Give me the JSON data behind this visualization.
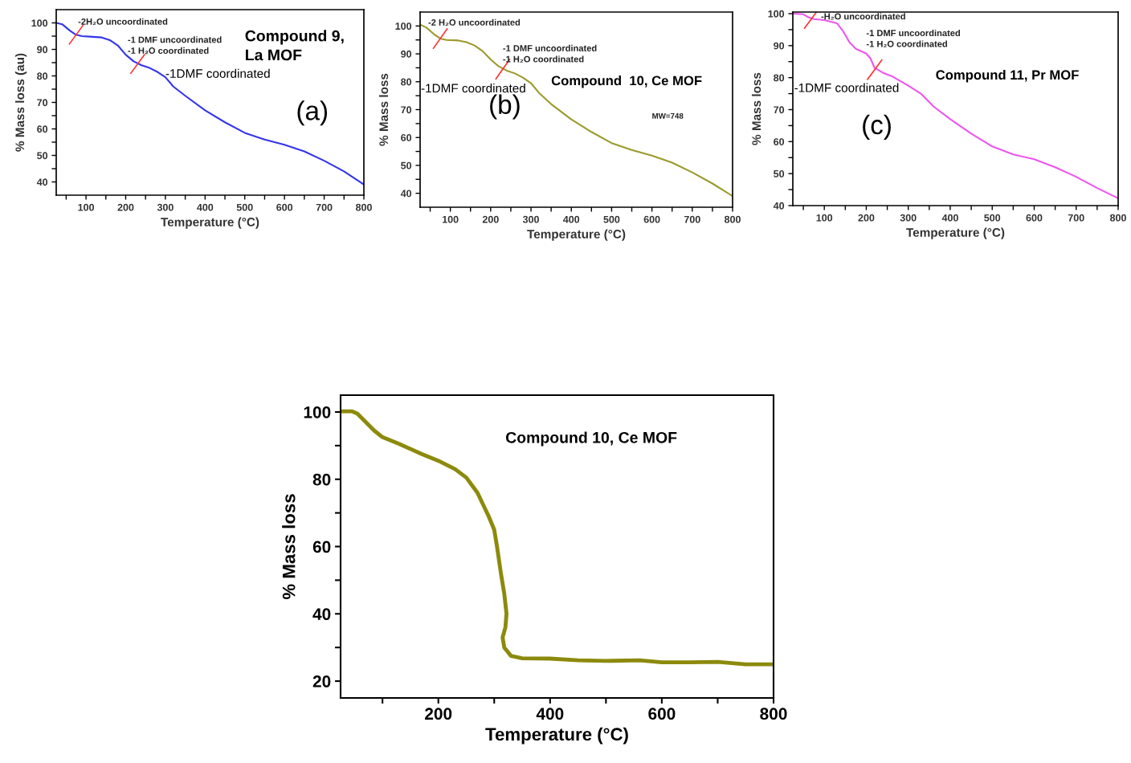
{
  "chart_data": [
    {
      "type": "line",
      "xlabel": "Temperature (°C)",
      "ylabel": "% Mass loss (au)",
      "xlim": [
        25,
        800
      ],
      "ylim": [
        35,
        105
      ],
      "xticks": [
        {
          "value": 50,
          "label": null
        },
        100,
        {
          "value": 150,
          "label": null
        },
        200,
        {
          "value": 250,
          "label": null
        },
        300,
        {
          "value": 350,
          "label": null
        },
        400,
        {
          "value": 450,
          "label": null
        },
        500,
        {
          "value": 550,
          "label": null
        },
        600,
        {
          "value": 650,
          "label": null
        },
        700,
        {
          "value": 750,
          "label": null
        },
        800
      ],
      "yticks": [
        40,
        {
          "value": 45,
          "label": null
        },
        50,
        {
          "value": 55,
          "label": null
        },
        60,
        {
          "value": 65,
          "label": null
        },
        70,
        {
          "value": 75,
          "label": null
        },
        80,
        {
          "value": 85,
          "label": null
        },
        90,
        {
          "value": 95,
          "label": null
        },
        100
      ],
      "grid": false,
      "series": [
        {
          "color": "#3434ee",
          "x": [
            25,
            40,
            60,
            75,
            90,
            110,
            140,
            160,
            180,
            200,
            220,
            240,
            260,
            280,
            300,
            320,
            350,
            400,
            450,
            500,
            550,
            600,
            650,
            700,
            750,
            800
          ],
          "values": [
            100,
            99.5,
            97,
            95.5,
            95,
            94.8,
            94.5,
            93.5,
            91.5,
            88,
            85.5,
            84,
            83,
            81.5,
            79.5,
            76,
            72.5,
            67,
            62.5,
            58.5,
            56,
            54,
            51.5,
            48,
            44,
            39
          ]
        }
      ],
      "annotations": [
        {
          "text": "-2H₂O uncoordinated",
          "x": 75,
          "y": 95.5
        },
        {
          "text": "-1 DMF uncoordinated\n-1 H₂O coordinated",
          "x": 230,
          "y": 84.5
        },
        "-1DMF coordinated",
        "Compound 9,\nLa MOF",
        "(a)"
      ]
    },
    {
      "type": "line",
      "xlabel": "Temperature (°C)",
      "ylabel": "% Mass loss",
      "xlim": [
        25,
        800
      ],
      "ylim": [
        35,
        105
      ],
      "xticks": [
        {
          "value": 50,
          "label": null
        },
        100,
        {
          "value": 150,
          "label": null
        },
        200,
        {
          "value": 250,
          "label": null
        },
        300,
        {
          "value": 350,
          "label": null
        },
        400,
        {
          "value": 450,
          "label": null
        },
        500,
        {
          "value": 550,
          "label": null
        },
        600,
        {
          "value": 650,
          "label": null
        },
        700,
        {
          "value": 750,
          "label": null
        },
        800
      ],
      "yticks": [
        40,
        {
          "value": 45,
          "label": null
        },
        50,
        {
          "value": 55,
          "label": null
        },
        60,
        {
          "value": 65,
          "label": null
        },
        70,
        {
          "value": 75,
          "label": null
        },
        80,
        {
          "value": 85,
          "label": null
        },
        90,
        {
          "value": 95,
          "label": null
        },
        100
      ],
      "grid": false,
      "series": [
        {
          "color": "#9b9a2c",
          "x": [
            25,
            40,
            60,
            75,
            90,
            120,
            140,
            160,
            180,
            200,
            220,
            240,
            260,
            280,
            300,
            320,
            350,
            400,
            450,
            500,
            550,
            600,
            650,
            700,
            750,
            800
          ],
          "values": [
            100.5,
            99.5,
            97,
            95.5,
            95,
            94.8,
            94.2,
            93,
            91,
            88,
            85.5,
            84,
            83,
            81.5,
            79.5,
            76,
            72,
            66.5,
            62,
            58,
            55.5,
            53.5,
            51,
            47.5,
            43.5,
            39
          ]
        }
      ],
      "annotations": [
        {
          "text": "-2 H₂O uncoordinated",
          "x": 75,
          "y": 95.5
        },
        {
          "text": "-1 DMF uncoordinated\n-1 H₂O coordinated",
          "x": 230,
          "y": 84.5
        },
        "-1DMF coordinated",
        "Compound  10, Ce MOF",
        "(b)",
        "MW=748"
      ]
    },
    {
      "type": "line",
      "xlabel": "Temperature (°C)",
      "ylabel": "% Mass loss",
      "xlim": [
        25,
        800
      ],
      "ylim": [
        40,
        100.5
      ],
      "xticks": [
        {
          "value": 50,
          "label": null
        },
        100,
        {
          "value": 150,
          "label": null
        },
        200,
        {
          "value": 250,
          "label": null
        },
        300,
        {
          "value": 350,
          "label": null
        },
        400,
        {
          "value": 450,
          "label": null
        },
        500,
        {
          "value": 550,
          "label": null
        },
        600,
        {
          "value": 650,
          "label": null
        },
        700,
        {
          "value": 750,
          "label": null
        },
        800
      ],
      "yticks": [
        40,
        {
          "value": 45,
          "label": null
        },
        50,
        {
          "value": 55,
          "label": null
        },
        60,
        {
          "value": 65,
          "label": null
        },
        70,
        {
          "value": 75,
          "label": null
        },
        80,
        {
          "value": 85,
          "label": null
        },
        90,
        {
          "value": 95,
          "label": null
        },
        100
      ],
      "grid": false,
      "series": [
        {
          "color": "#ee55ee",
          "x": [
            25,
            50,
            60,
            75,
            100,
            130,
            145,
            160,
            175,
            200,
            210,
            220,
            240,
            260,
            280,
            300,
            330,
            360,
            400,
            450,
            500,
            550,
            600,
            650,
            700,
            750,
            800
          ],
          "values": [
            100,
            99.8,
            99,
            98.3,
            98,
            97,
            94.5,
            91,
            89,
            87.5,
            86,
            83,
            81.5,
            80.5,
            79,
            77.5,
            75,
            71,
            67,
            62.5,
            58.5,
            56,
            54.5,
            52,
            49,
            45.5,
            42.3
          ]
        }
      ],
      "annotations": [
        {
          "text": "-H₂O uncoordinated",
          "x": 70,
          "y": 98.5
        },
        {
          "text": "-1 DMF uncoordinated\n-1 H₂O coordinated",
          "x": 220,
          "y": 82.5
        },
        "-1DMF coordinated",
        "Compound 11, Pr MOF",
        "(c)"
      ]
    },
    {
      "type": "line",
      "xlabel": "Temperature (°C)",
      "ylabel": "% Mass loss",
      "xlim": [
        25,
        800
      ],
      "ylim": [
        15,
        105
      ],
      "xticks": [
        {
          "value": 100,
          "label": null
        },
        200,
        {
          "value": 300,
          "label": null
        },
        400,
        {
          "value": 500,
          "label": null
        },
        600,
        {
          "value": 700,
          "label": null
        },
        800
      ],
      "yticks": [
        20,
        {
          "value": 30,
          "label": null
        },
        40,
        {
          "value": 50,
          "label": null
        },
        60,
        {
          "value": 70,
          "label": null
        },
        80,
        {
          "value": 90,
          "label": null
        },
        100
      ],
      "grid": false,
      "series": [
        {
          "color": "#8c8a0c",
          "x": [
            25,
            45,
            55,
            70,
            85,
            100,
            130,
            170,
            200,
            230,
            250,
            270,
            290,
            300,
            305,
            312,
            318,
            322,
            320,
            315,
            318,
            330,
            350,
            400,
            450,
            500,
            560,
            600,
            650,
            700,
            750,
            800
          ],
          "values": [
            100.2,
            100.2,
            99.5,
            97,
            94.5,
            92.5,
            90.5,
            87.5,
            85.5,
            83,
            80.5,
            76,
            69,
            65,
            60,
            52,
            46,
            40,
            36,
            33,
            30,
            27.5,
            26.8,
            26.7,
            26.2,
            26,
            26.2,
            25.6,
            25.6,
            25.7,
            25,
            25
          ]
        }
      ],
      "annotations": [
        "Compound 10, Ce MOF"
      ]
    }
  ]
}
